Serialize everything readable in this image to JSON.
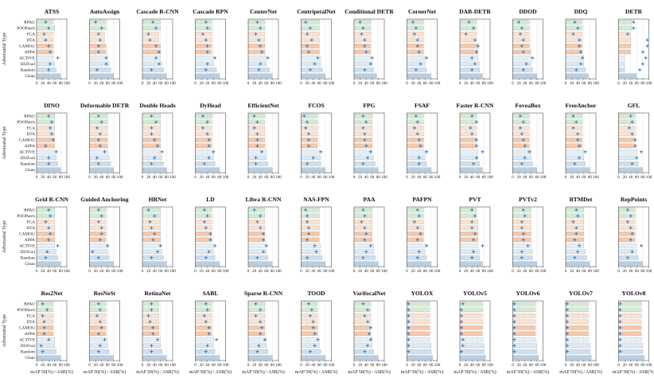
{
  "figure": {
    "xlabel": "mAP 50(%) / ASR(%)",
    "ylabel": "Adversarial Type",
    "ticks": [
      "0",
      "20",
      "40",
      "60",
      "80",
      "100"
    ],
    "categories": [
      "RPAU",
      "POOPatch",
      "FCA",
      "DTA",
      "CAMOU",
      "APPA",
      "ACTIVE",
      "3D2Fool",
      "Random",
      "Clean"
    ],
    "category_colors": [
      "#d4ead3",
      "#d4ead3",
      "#fbe1cf",
      "#fbe1cf",
      "#f6c8aa",
      "#f6c8aa",
      "#e6eff8",
      "#dce8f4",
      "#cddff0",
      "#b6cfe6"
    ],
    "marker_color": "#2878c0"
  },
  "chart_data": [
    {
      "type": "bar",
      "title": "ATSS",
      "xlim": [
        0,
        100
      ],
      "bars": [
        55,
        60,
        55,
        55,
        55,
        55,
        55,
        60,
        65,
        80
      ],
      "markers": [
        30,
        40,
        25,
        30,
        40,
        45,
        70,
        45,
        40,
        null
      ]
    },
    {
      "type": "bar",
      "title": "AutoAssign",
      "xlim": [
        0,
        100
      ],
      "bars": [
        55,
        55,
        50,
        50,
        55,
        55,
        60,
        65,
        70,
        80
      ],
      "markers": [
        20,
        40,
        30,
        35,
        30,
        30,
        55,
        55,
        25,
        null
      ]
    },
    {
      "type": "bar",
      "title": "Cascade R-CNN",
      "xlim": [
        0,
        100
      ],
      "bars": [
        60,
        60,
        55,
        55,
        60,
        60,
        60,
        65,
        70,
        80
      ],
      "markers": [
        35,
        45,
        20,
        25,
        45,
        55,
        45,
        55,
        30,
        null
      ]
    },
    {
      "type": "bar",
      "title": "Cascade RPN",
      "xlim": [
        0,
        100
      ],
      "bars": [
        55,
        55,
        55,
        55,
        55,
        55,
        60,
        60,
        70,
        80
      ],
      "markers": [
        35,
        40,
        25,
        35,
        40,
        40,
        65,
        40,
        35,
        null
      ]
    },
    {
      "type": "bar",
      "title": "CenterNet",
      "xlim": [
        0,
        100
      ],
      "bars": [
        55,
        55,
        55,
        55,
        55,
        55,
        60,
        60,
        70,
        80
      ],
      "markers": [
        30,
        40,
        25,
        35,
        40,
        45,
        65,
        40,
        35,
        null
      ]
    },
    {
      "type": "bar",
      "title": "CentripetalNet",
      "xlim": [
        0,
        100
      ],
      "bars": [
        60,
        60,
        60,
        60,
        60,
        60,
        65,
        65,
        70,
        80
      ],
      "markers": [
        15,
        30,
        20,
        35,
        20,
        25,
        55,
        45,
        30,
        null
      ]
    },
    {
      "type": "bar",
      "title": "Conditional DETR",
      "xlim": [
        0,
        100
      ],
      "bars": [
        55,
        55,
        55,
        55,
        55,
        55,
        55,
        60,
        65,
        75
      ],
      "markers": [
        20,
        30,
        25,
        35,
        35,
        40,
        60,
        55,
        35,
        null
      ]
    },
    {
      "type": "bar",
      "title": "CornerNet",
      "xlim": [
        0,
        100
      ],
      "bars": [
        55,
        55,
        55,
        55,
        55,
        55,
        60,
        60,
        65,
        80
      ],
      "markers": [
        20,
        30,
        25,
        35,
        35,
        40,
        65,
        45,
        30,
        null
      ]
    },
    {
      "type": "bar",
      "title": "DAB-DETR",
      "xlim": [
        0,
        100
      ],
      "bars": [
        55,
        55,
        55,
        55,
        60,
        60,
        60,
        65,
        65,
        75
      ],
      "markers": [
        30,
        45,
        20,
        50,
        60,
        55,
        40,
        50,
        40,
        null
      ]
    },
    {
      "type": "bar",
      "title": "DDOD",
      "xlim": [
        0,
        100
      ],
      "bars": [
        55,
        55,
        55,
        55,
        55,
        60,
        60,
        60,
        65,
        80
      ],
      "markers": [
        20,
        30,
        25,
        35,
        30,
        35,
        65,
        45,
        35,
        null
      ]
    },
    {
      "type": "bar",
      "title": "DDQ",
      "xlim": [
        0,
        100
      ],
      "bars": [
        55,
        55,
        55,
        55,
        55,
        55,
        60,
        60,
        65,
        75
      ],
      "markers": [
        30,
        40,
        25,
        45,
        45,
        50,
        55,
        50,
        35,
        null
      ]
    },
    {
      "type": "bar",
      "title": "DETR",
      "xlim": [
        0,
        100
      ],
      "bars": [
        45,
        45,
        40,
        40,
        40,
        40,
        20,
        20,
        20,
        60
      ],
      "markers": [
        50,
        50,
        30,
        95,
        95,
        80,
        90,
        80,
        70,
        null
      ]
    },
    {
      "type": "bar",
      "title": "DINO",
      "xlim": [
        0,
        100
      ],
      "bars": [
        60,
        60,
        60,
        60,
        60,
        60,
        65,
        65,
        70,
        80
      ],
      "markers": [
        40,
        50,
        45,
        50,
        55,
        30,
        65,
        40,
        40,
        null
      ]
    },
    {
      "type": "bar",
      "title": "Deformable DETR",
      "xlim": [
        0,
        100
      ],
      "bars": [
        60,
        60,
        60,
        60,
        60,
        60,
        60,
        65,
        70,
        80
      ],
      "markers": [
        30,
        40,
        25,
        35,
        30,
        35,
        50,
        25,
        30,
        null
      ]
    },
    {
      "type": "bar",
      "title": "Double Heads",
      "xlim": [
        0,
        100
      ],
      "bars": [
        60,
        60,
        60,
        60,
        60,
        60,
        60,
        65,
        70,
        80
      ],
      "markers": [
        30,
        45,
        30,
        30,
        40,
        50,
        65,
        40,
        30,
        null
      ]
    },
    {
      "type": "bar",
      "title": "DyHead",
      "xlim": [
        0,
        100
      ],
      "bars": [
        55,
        55,
        55,
        55,
        55,
        55,
        60,
        60,
        65,
        80
      ],
      "markers": [
        25,
        40,
        25,
        40,
        45,
        45,
        60,
        45,
        30,
        null
      ]
    },
    {
      "type": "bar",
      "title": "EfficientNet",
      "xlim": [
        0,
        100
      ],
      "bars": [
        55,
        55,
        55,
        55,
        55,
        55,
        60,
        60,
        65,
        80
      ],
      "markers": [
        20,
        30,
        20,
        30,
        30,
        30,
        45,
        25,
        25,
        null
      ]
    },
    {
      "type": "bar",
      "title": "FCOS",
      "xlim": [
        0,
        100
      ],
      "bars": [
        55,
        55,
        55,
        55,
        55,
        55,
        60,
        65,
        65,
        80
      ],
      "markers": [
        10,
        20,
        15,
        25,
        25,
        25,
        65,
        40,
        20,
        null
      ]
    },
    {
      "type": "bar",
      "title": "FPG",
      "xlim": [
        0,
        100
      ],
      "bars": [
        60,
        60,
        60,
        60,
        60,
        60,
        60,
        65,
        70,
        80
      ],
      "markers": [
        30,
        40,
        30,
        35,
        35,
        40,
        55,
        45,
        30,
        null
      ]
    },
    {
      "type": "bar",
      "title": "FSAF",
      "xlim": [
        0,
        100
      ],
      "bars": [
        55,
        55,
        55,
        55,
        55,
        55,
        60,
        60,
        65,
        80
      ],
      "markers": [
        30,
        35,
        25,
        35,
        40,
        45,
        65,
        40,
        40,
        null
      ]
    },
    {
      "type": "bar",
      "title": "Faster R-CNN",
      "xlim": [
        0,
        100
      ],
      "bars": [
        55,
        55,
        55,
        55,
        55,
        55,
        60,
        60,
        65,
        75
      ],
      "markers": [
        40,
        55,
        35,
        40,
        55,
        55,
        75,
        55,
        45,
        null
      ]
    },
    {
      "type": "bar",
      "title": "FoveaBox",
      "xlim": [
        0,
        100
      ],
      "bars": [
        55,
        55,
        55,
        55,
        55,
        55,
        60,
        60,
        65,
        80
      ],
      "markers": [
        25,
        35,
        25,
        30,
        35,
        40,
        55,
        40,
        30,
        null
      ]
    },
    {
      "type": "bar",
      "title": "FreeAnchor",
      "xlim": [
        0,
        100
      ],
      "bars": [
        55,
        55,
        55,
        55,
        55,
        55,
        60,
        60,
        65,
        80
      ],
      "markers": [
        25,
        35,
        25,
        40,
        40,
        45,
        65,
        45,
        30,
        null
      ]
    },
    {
      "type": "bar",
      "title": "GFL",
      "xlim": [
        0,
        100
      ],
      "bars": [
        55,
        55,
        55,
        55,
        55,
        55,
        60,
        60,
        65,
        80
      ],
      "markers": [
        40,
        45,
        35,
        45,
        55,
        55,
        75,
        60,
        45,
        null
      ]
    },
    {
      "type": "bar",
      "title": "Grid R-CNN",
      "xlim": [
        0,
        100
      ],
      "bars": [
        60,
        60,
        60,
        60,
        60,
        60,
        60,
        65,
        70,
        80
      ],
      "markers": [
        40,
        45,
        30,
        40,
        45,
        40,
        70,
        35,
        30,
        null
      ]
    },
    {
      "type": "bar",
      "title": "Guided Anchoring",
      "xlim": [
        0,
        100
      ],
      "bars": [
        55,
        55,
        55,
        55,
        55,
        55,
        60,
        60,
        65,
        80
      ],
      "markers": [
        30,
        40,
        30,
        40,
        40,
        35,
        60,
        10,
        30,
        null
      ]
    },
    {
      "type": "bar",
      "title": "HRNet",
      "xlim": [
        0,
        100
      ],
      "bars": [
        60,
        60,
        60,
        60,
        60,
        60,
        60,
        65,
        70,
        80
      ],
      "markers": [
        20,
        40,
        25,
        30,
        40,
        35,
        60,
        50,
        30,
        null
      ]
    },
    {
      "type": "bar",
      "title": "LD",
      "xlim": [
        0,
        100
      ],
      "bars": [
        55,
        55,
        55,
        55,
        55,
        55,
        60,
        60,
        65,
        80
      ],
      "markers": [
        30,
        40,
        30,
        35,
        50,
        50,
        65,
        45,
        35,
        null
      ]
    },
    {
      "type": "bar",
      "title": "Libra R-CNN",
      "xlim": [
        0,
        100
      ],
      "bars": [
        55,
        55,
        55,
        55,
        55,
        55,
        60,
        60,
        65,
        80
      ],
      "markers": [
        20,
        40,
        30,
        40,
        50,
        50,
        60,
        50,
        30,
        null
      ]
    },
    {
      "type": "bar",
      "title": "NAS-FPN",
      "xlim": [
        0,
        100
      ],
      "bars": [
        60,
        60,
        60,
        60,
        60,
        60,
        65,
        65,
        70,
        80
      ],
      "markers": [
        15,
        20,
        20,
        25,
        25,
        20,
        45,
        50,
        20,
        null
      ]
    },
    {
      "type": "bar",
      "title": "PAA",
      "xlim": [
        0,
        100
      ],
      "bars": [
        60,
        60,
        60,
        60,
        60,
        60,
        65,
        65,
        70,
        80
      ],
      "markers": [
        30,
        35,
        25,
        35,
        40,
        35,
        55,
        40,
        30,
        null
      ]
    },
    {
      "type": "bar",
      "title": "PAFPN",
      "xlim": [
        0,
        100
      ],
      "bars": [
        55,
        55,
        55,
        55,
        55,
        55,
        60,
        60,
        65,
        80
      ],
      "markers": [
        35,
        40,
        25,
        35,
        45,
        35,
        65,
        40,
        35,
        null
      ]
    },
    {
      "type": "bar",
      "title": "PVT",
      "xlim": [
        0,
        100
      ],
      "bars": [
        55,
        55,
        60,
        60,
        60,
        60,
        60,
        65,
        65,
        75
      ],
      "markers": [
        40,
        50,
        40,
        40,
        50,
        45,
        75,
        45,
        40,
        null
      ]
    },
    {
      "type": "bar",
      "title": "PVTv2",
      "xlim": [
        0,
        100
      ],
      "bars": [
        60,
        60,
        60,
        60,
        60,
        60,
        60,
        65,
        65,
        80
      ],
      "markers": [
        35,
        40,
        30,
        30,
        35,
        35,
        50,
        30,
        30,
        null
      ]
    },
    {
      "type": "bar",
      "title": "RTMDet",
      "xlim": [
        0,
        100
      ],
      "bars": [
        60,
        60,
        60,
        60,
        60,
        60,
        60,
        65,
        70,
        80
      ],
      "markers": [
        35,
        40,
        25,
        35,
        35,
        30,
        45,
        40,
        30,
        null
      ]
    },
    {
      "type": "bar",
      "title": "RepPoints",
      "xlim": [
        0,
        100
      ],
      "bars": [
        55,
        55,
        55,
        55,
        55,
        55,
        60,
        60,
        65,
        80
      ],
      "markers": [
        30,
        40,
        30,
        40,
        45,
        40,
        75,
        45,
        30,
        null
      ]
    },
    {
      "type": "bar",
      "title": "Res2Net",
      "xlim": [
        0,
        100
      ],
      "bars": [
        55,
        55,
        55,
        55,
        55,
        55,
        60,
        60,
        65,
        80
      ],
      "markers": [
        20,
        35,
        20,
        25,
        25,
        25,
        40,
        15,
        20,
        null
      ]
    },
    {
      "type": "bar",
      "title": "ResNeSt",
      "xlim": [
        0,
        100
      ],
      "bars": [
        55,
        55,
        55,
        55,
        55,
        55,
        60,
        60,
        65,
        80
      ],
      "markers": [
        30,
        35,
        25,
        35,
        40,
        30,
        50,
        35,
        30,
        null
      ]
    },
    {
      "type": "bar",
      "title": "RetinaNet",
      "xlim": [
        0,
        100
      ],
      "bars": [
        55,
        55,
        55,
        55,
        55,
        55,
        60,
        60,
        65,
        80
      ],
      "markers": [
        30,
        30,
        20,
        25,
        35,
        35,
        50,
        30,
        30,
        null
      ]
    },
    {
      "type": "bar",
      "title": "SABL",
      "xlim": [
        0,
        100
      ],
      "bars": [
        55,
        55,
        55,
        55,
        55,
        55,
        60,
        60,
        65,
        80
      ],
      "markers": [
        35,
        40,
        30,
        35,
        45,
        45,
        70,
        40,
        35,
        null
      ]
    },
    {
      "type": "bar",
      "title": "Sparse R-CNN",
      "xlim": [
        0,
        100
      ],
      "bars": [
        55,
        55,
        55,
        55,
        55,
        55,
        60,
        60,
        65,
        80
      ],
      "markers": [
        25,
        40,
        25,
        40,
        45,
        40,
        55,
        35,
        30,
        null
      ]
    },
    {
      "type": "bar",
      "title": "TOOD",
      "xlim": [
        0,
        100
      ],
      "bars": [
        55,
        55,
        55,
        55,
        55,
        55,
        60,
        60,
        65,
        80
      ],
      "markers": [
        25,
        35,
        30,
        40,
        40,
        45,
        55,
        45,
        30,
        null
      ]
    },
    {
      "type": "bar",
      "title": "VarifocalNet",
      "xlim": [
        0,
        100
      ],
      "bars": [
        55,
        55,
        55,
        55,
        55,
        55,
        60,
        60,
        65,
        80
      ],
      "markers": [
        30,
        45,
        35,
        45,
        55,
        50,
        55,
        45,
        35,
        null
      ]
    },
    {
      "type": "bar",
      "title": "YOLOX",
      "xlim": [
        0,
        100
      ],
      "bars": [
        75,
        75,
        75,
        75,
        75,
        75,
        75,
        80,
        80,
        85
      ],
      "markers": [
        5,
        5,
        5,
        5,
        5,
        5,
        5,
        5,
        5,
        null
      ]
    },
    {
      "type": "bar",
      "title": "YOLOv5",
      "xlim": [
        0,
        100
      ],
      "bars": [
        75,
        75,
        75,
        75,
        75,
        75,
        75,
        80,
        80,
        85
      ],
      "markers": [
        10,
        5,
        5,
        5,
        5,
        5,
        10,
        10,
        5,
        null
      ]
    },
    {
      "type": "bar",
      "title": "YOLOv6",
      "xlim": [
        0,
        100
      ],
      "bars": [
        75,
        75,
        75,
        75,
        75,
        75,
        75,
        80,
        80,
        85
      ],
      "markers": [
        5,
        5,
        5,
        5,
        5,
        5,
        5,
        5,
        5,
        null
      ]
    },
    {
      "type": "bar",
      "title": "YOLOv7",
      "xlim": [
        0,
        100
      ],
      "bars": [
        75,
        75,
        75,
        75,
        75,
        75,
        75,
        80,
        80,
        85
      ],
      "markers": [
        5,
        5,
        5,
        5,
        5,
        5,
        5,
        5,
        5,
        null
      ]
    },
    {
      "type": "bar",
      "title": "YOLOv8",
      "xlim": [
        0,
        100
      ],
      "bars": [
        75,
        75,
        75,
        75,
        75,
        75,
        75,
        80,
        80,
        85
      ],
      "markers": [
        5,
        5,
        5,
        5,
        5,
        5,
        5,
        5,
        5,
        null
      ]
    }
  ]
}
